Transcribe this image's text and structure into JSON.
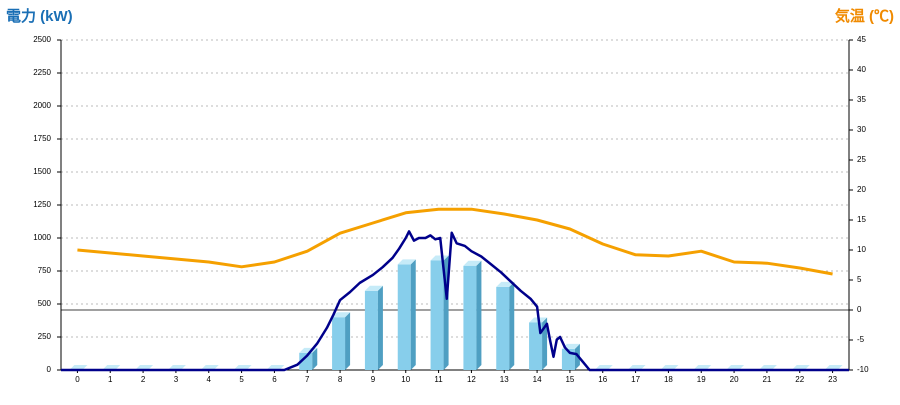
{
  "chart_data": {
    "type": "bar",
    "title": "電力 (kW)",
    "y2_title": "気温 (℃)",
    "categories": [
      "0",
      "1",
      "2",
      "3",
      "4",
      "5",
      "6",
      "7",
      "8",
      "9",
      "10",
      "11",
      "12",
      "13",
      "14",
      "15",
      "16",
      "17",
      "18",
      "19",
      "20",
      "21",
      "22",
      "23"
    ],
    "xlim": [
      -0.5,
      23.5
    ],
    "ylim": [
      0,
      2500
    ],
    "yticks": [
      0,
      250,
      500,
      750,
      1000,
      1250,
      1500,
      1750,
      2000,
      2250,
      2500
    ],
    "y2lim": [
      -10,
      45
    ],
    "y2ticks": [
      -10,
      -5,
      0,
      5,
      10,
      15,
      20,
      25,
      30,
      35,
      40,
      45
    ],
    "y2_baseline": 0,
    "grid": true,
    "series": [
      {
        "type": "bar",
        "color": "#87ceeb",
        "values": [
          0,
          0,
          0,
          0,
          0,
          0,
          0,
          130,
          400,
          600,
          800,
          830,
          790,
          630,
          360,
          160,
          0,
          0,
          0,
          0,
          0,
          0,
          0,
          0
        ]
      },
      {
        "type": "line",
        "axis": "y2",
        "color": "#f5a000",
        "values": [
          10,
          9.5,
          9,
          8.5,
          8,
          7.2,
          8,
          9.8,
          12.8,
          14.5,
          16.2,
          16.8,
          16.8,
          16,
          15,
          13.5,
          11,
          9.2,
          9,
          9.8,
          8,
          7.8,
          7,
          6
        ]
      },
      {
        "type": "line",
        "color": "#00008b",
        "x": [
          -0.5,
          6.3,
          6.7,
          7,
          7.3,
          7.6,
          7.8,
          8,
          8.3,
          8.6,
          9,
          9.3,
          9.6,
          9.8,
          10,
          10.1,
          10.25,
          10.4,
          10.6,
          10.75,
          10.9,
          11.05,
          11.25,
          11.4,
          11.55,
          11.8,
          12,
          12.3,
          12.6,
          12.9,
          13.2,
          13.5,
          13.8,
          14,
          14.1,
          14.3,
          14.4,
          14.5,
          14.6,
          14.7,
          14.85,
          15,
          15.2,
          15.4,
          15.6,
          23.5
        ],
        "values": [
          0,
          0,
          40,
          110,
          200,
          320,
          420,
          530,
          590,
          660,
          720,
          780,
          850,
          920,
          1000,
          1050,
          980,
          1000,
          1000,
          1020,
          990,
          1000,
          540,
          1040,
          960,
          940,
          900,
          860,
          800,
          740,
          670,
          600,
          540,
          480,
          280,
          350,
          220,
          100,
          230,
          250,
          170,
          130,
          120,
          60,
          0,
          0
        ]
      }
    ]
  }
}
